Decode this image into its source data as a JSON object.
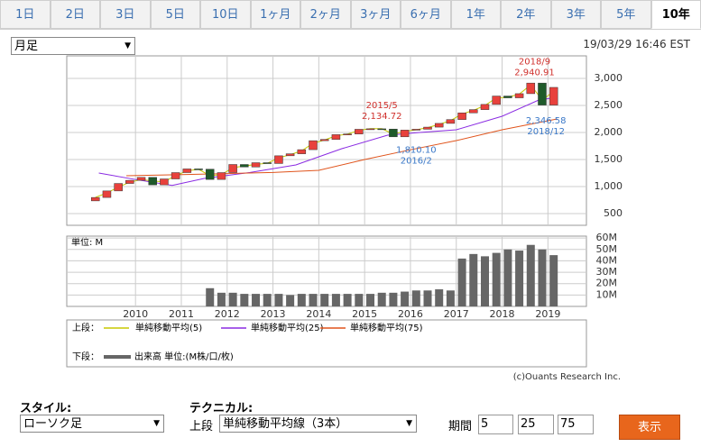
{
  "tabs": [
    "1日",
    "2日",
    "3日",
    "5日",
    "10日",
    "1ヶ月",
    "2ヶ月",
    "3ヶ月",
    "6ヶ月",
    "1年",
    "2年",
    "3年",
    "5年",
    "10年"
  ],
  "active_tab": 13,
  "period_select": "月足",
  "timestamp": "19/03/29 16:46 EST",
  "chart_data": [
    {
      "type": "candlestick",
      "x": [
        2009.125,
        2009.375,
        2009.625,
        2009.875,
        2010.125,
        2010.375,
        2010.625,
        2010.875,
        2011.125,
        2011.375,
        2011.625,
        2011.875,
        2012.125,
        2012.375,
        2012.625,
        2012.875,
        2013.125,
        2013.375,
        2013.625,
        2013.875,
        2014.125,
        2014.375,
        2014.625,
        2014.875,
        2015.125,
        2015.375,
        2015.625,
        2015.875,
        2016.125,
        2016.375,
        2016.625,
        2016.875,
        2017.125,
        2017.375,
        2017.625,
        2017.875,
        2018.125,
        2018.375,
        2018.625,
        2018.875,
        2019.125
      ],
      "open": [
        735,
        798,
        919,
        1057,
        1115,
        1169,
        1031,
        1141,
        1258,
        1326,
        1321,
        1131,
        1258,
        1408,
        1362,
        1441,
        1426,
        1569,
        1606,
        1682,
        1848,
        1872,
        1960,
        1972,
        2059,
        2068,
        2063,
        1920,
        2044,
        2060,
        2099,
        2168,
        2239,
        2363,
        2423,
        2519,
        2674,
        2641,
        2718,
        2914,
        2507
      ],
      "close": [
        798,
        919,
        1057,
        1115,
        1169,
        1031,
        1141,
        1258,
        1326,
        1321,
        1131,
        1258,
        1408,
        1362,
        1441,
        1426,
        1569,
        1606,
        1682,
        1848,
        1872,
        1960,
        1972,
        2059,
        2068,
        2063,
        1920,
        2044,
        2060,
        2099,
        2168,
        2239,
        2363,
        2423,
        2519,
        2674,
        2641,
        2718,
        2914,
        2507,
        2834
      ],
      "up_color": "#e8413c",
      "down_color": "#1f5a2a",
      "series": [
        {
          "name": "単純移動平均(5)",
          "color": "#c8c800",
          "x": [
            2009.125,
            2009.375,
            2009.625,
            2009.875,
            2010.125,
            2010.375,
            2010.625,
            2010.875,
            2011.125,
            2011.375,
            2011.625,
            2011.875,
            2012.125,
            2012.375,
            2012.625,
            2012.875,
            2013.125,
            2013.375,
            2013.625,
            2013.875,
            2014.125,
            2014.375,
            2014.625,
            2014.875,
            2015.125,
            2015.375,
            2015.625,
            2015.875,
            2016.125,
            2016.375,
            2016.625,
            2016.875,
            2017.125,
            2017.375,
            2017.625,
            2017.875,
            2018.125,
            2018.375,
            2018.625,
            2018.875,
            2019.125
          ],
          "values": [
            800,
            880,
            990,
            1080,
            1130,
            1100,
            1090,
            1200,
            1290,
            1320,
            1200,
            1220,
            1350,
            1380,
            1410,
            1430,
            1530,
            1590,
            1660,
            1800,
            1860,
            1940,
            1970,
            2040,
            2070,
            2070,
            1970,
            2020,
            2050,
            2090,
            2150,
            2220,
            2340,
            2410,
            2500,
            2640,
            2650,
            2710,
            2880,
            2600,
            2760
          ]
        },
        {
          "name": "単純移動平均(25)",
          "color": "#8a2be2",
          "x": [
            2009.2,
            2010,
            2010.8,
            2011.5,
            2012.5,
            2013.5,
            2014.5,
            2015.5,
            2016.2,
            2017,
            2018,
            2018.8,
            2019.2
          ],
          "values": [
            1250,
            1130,
            1020,
            1150,
            1260,
            1400,
            1700,
            1950,
            2000,
            2050,
            2300,
            2600,
            2650
          ]
        },
        {
          "name": "単純移動平均(75)",
          "color": "#e0541c",
          "x": [
            2009.8,
            2011,
            2012,
            2013,
            2014,
            2015,
            2016,
            2017,
            2018,
            2019.2
          ],
          "values": [
            1200,
            1220,
            1240,
            1260,
            1300,
            1500,
            1680,
            1850,
            2050,
            2250
          ]
        }
      ],
      "xlim": [
        2008.5,
        2019.84
      ],
      "ylim": [
        283,
        3417
      ],
      "yticks": [
        {
          "value": 3000,
          "label": "3,000"
        },
        {
          "value": 2500,
          "label": "2,500"
        },
        {
          "value": 2000,
          "label": "2,000"
        },
        {
          "value": 1500,
          "label": "1,500"
        },
        {
          "value": 1000,
          "label": "1,000"
        },
        500
      ],
      "annotations": [
        {
          "date": "2018/9",
          "x": 2018.708,
          "value": 2940.91,
          "value_label": "2,940.91",
          "color": "#d0312d"
        },
        {
          "date": "2015/5",
          "x": 2015.375,
          "value": 2134.72,
          "value_label": "2,134.72",
          "color": "#d0312d"
        },
        {
          "date": "2016/2",
          "x": 2016.125,
          "value": 1810.1,
          "value_label": "1,810.10",
          "color": "#3a78c8"
        },
        {
          "date": "2018/12",
          "x": 2018.958,
          "value": 2346.58,
          "value_label": "2,346.58",
          "color": "#3a78c8"
        }
      ]
    },
    {
      "type": "bar",
      "y_label": "単位: M",
      "series": [
        {
          "name": "出来高 単位:(M株/口/枚)",
          "color": "#666666",
          "x": [
            2011.625,
            2011.875,
            2012.125,
            2012.375,
            2012.625,
            2012.875,
            2013.125,
            2013.375,
            2013.625,
            2013.875,
            2014.125,
            2014.375,
            2014.625,
            2014.875,
            2015.125,
            2015.375,
            2015.625,
            2015.875,
            2016.125,
            2016.375,
            2016.625,
            2016.875,
            2017.125,
            2017.375,
            2017.625,
            2017.875,
            2018.125,
            2018.375,
            2018.625,
            2018.875,
            2019.125
          ],
          "values": [
            16,
            12,
            12,
            11,
            11,
            11,
            11,
            10,
            11,
            11,
            11,
            11,
            11,
            11,
            11,
            12,
            12,
            13,
            14,
            14,
            15,
            14,
            42,
            46,
            44,
            47,
            50,
            49,
            54,
            50,
            45
          ]
        }
      ],
      "xlim": [
        2008.5,
        2019.84
      ],
      "xticks": [
        2010,
        2011,
        2012,
        2013,
        2014,
        2015,
        2016,
        2017,
        2018,
        2019
      ],
      "ylim": [
        0,
        61.7
      ],
      "yticks": [
        {
          "value": 60,
          "label": "60M"
        },
        {
          "value": 50,
          "label": "50M"
        },
        {
          "value": 40,
          "label": "40M"
        },
        {
          "value": 30,
          "label": "30M"
        },
        {
          "value": 20,
          "label": "20M"
        },
        {
          "value": 10,
          "label": "10M"
        }
      ]
    }
  ],
  "legend": {
    "upper": "上段：",
    "lower": "下段："
  },
  "copyright": "(c)Ouants Research Inc.",
  "controls": {
    "style_label": "スタイル:",
    "style_value": "ローソク足",
    "technical_label": "テクニカル:",
    "upper_label": "上段",
    "technical_value": "単純移動平均線（3本）",
    "period_label": "期間",
    "periods": [
      5,
      25,
      75
    ],
    "button": "表示"
  }
}
